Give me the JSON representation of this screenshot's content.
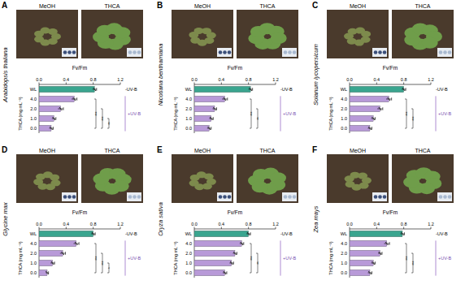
{
  "chart_data": [
    {
      "type": "bar",
      "orientation": "horizontal",
      "panel": "A",
      "title": "Arabidopsis thaliana",
      "photo_labels": [
        "MeOH",
        "THCA"
      ],
      "x_label": "Fv/Fm",
      "y_label": "THCA (mg mL⁻¹)",
      "categories": [
        "WL",
        "4.0",
        "2.0",
        "1.0",
        "0.0"
      ],
      "values": [
        0.82,
        0.52,
        0.32,
        0.22,
        0.18
      ],
      "errors": [
        0.03,
        0.04,
        0.04,
        0.03,
        0.03
      ],
      "colors": [
        "#3aa58f",
        "#b89ad8",
        "#b89ad8",
        "#b89ad8",
        "#b89ad8"
      ],
      "xlim": [
        0,
        1.2
      ],
      "xticks": [
        {
          "value": 0,
          "label": "0.0"
        },
        0.4,
        0.8,
        1.2
      ],
      "annotations": [
        "-UV-B",
        "+UV-B"
      ],
      "significance": [
        {
          "from": 1,
          "to": 4,
          "label": "***"
        },
        {
          "from": 2,
          "to": 4,
          "label": "***"
        },
        {
          "from": 3,
          "to": 4,
          "label": "**"
        }
      ]
    },
    {
      "type": "bar",
      "orientation": "horizontal",
      "panel": "B",
      "title": "Nicotiana benthamiana",
      "photo_labels": [
        "MeOH",
        "THCA"
      ],
      "x_label": "Fv/Fm",
      "y_label": "THCA (mg mL⁻¹)",
      "categories": [
        "WL",
        "4.0",
        "2.0",
        "1.0",
        "0.0"
      ],
      "values": [
        0.83,
        0.45,
        0.3,
        0.25,
        0.22
      ],
      "errors": [
        0.03,
        0.04,
        0.03,
        0.03,
        0.03
      ],
      "colors": [
        "#3aa58f",
        "#b89ad8",
        "#b89ad8",
        "#b89ad8",
        "#b89ad8"
      ],
      "xlim": [
        0,
        1.2
      ],
      "xticks": [
        {
          "value": 0,
          "label": "0.0"
        },
        0.4,
        0.8,
        1.2
      ],
      "annotations": [
        "-UV-B",
        "+UV-B"
      ],
      "significance": [
        {
          "from": 1,
          "to": 4,
          "label": "***"
        },
        {
          "from": 2,
          "to": 4,
          "label": "**"
        }
      ]
    },
    {
      "type": "bar",
      "orientation": "horizontal",
      "panel": "C",
      "title": "Solanum lycopersicum",
      "photo_labels": [
        "MeOH",
        "THCA"
      ],
      "x_label": "Fv/Fm",
      "y_label": "THCA (mg mL⁻¹)",
      "categories": [
        "WL",
        "4.0",
        "2.0",
        "1.0",
        "0.0"
      ],
      "values": [
        0.8,
        0.58,
        0.45,
        0.35,
        0.3
      ],
      "errors": [
        0.03,
        0.04,
        0.04,
        0.03,
        0.03
      ],
      "colors": [
        "#3aa58f",
        "#b89ad8",
        "#b89ad8",
        "#b89ad8",
        "#b89ad8"
      ],
      "xlim": [
        0,
        1.2
      ],
      "xticks": [
        {
          "value": 0,
          "label": "0.0"
        },
        0.4,
        0.8,
        1.2
      ],
      "annotations": [
        "-UV-B",
        "+UV-B"
      ],
      "significance": [
        {
          "from": 1,
          "to": 4,
          "label": "***"
        },
        {
          "from": 2,
          "to": 4,
          "label": "***"
        }
      ]
    },
    {
      "type": "bar",
      "orientation": "horizontal",
      "panel": "D",
      "title": "Glycine max",
      "photo_labels": [
        "MeOH",
        "THCA"
      ],
      "x_label": "Fv/Fm",
      "y_label": "THCA (mg mL⁻¹)",
      "categories": [
        "WL",
        "4.0",
        "2.0",
        "1.0",
        "0.0"
      ],
      "values": [
        0.8,
        0.55,
        0.35,
        0.2,
        0.12
      ],
      "errors": [
        0.03,
        0.04,
        0.04,
        0.03,
        0.02
      ],
      "colors": [
        "#3aa58f",
        "#b89ad8",
        "#b89ad8",
        "#b89ad8",
        "#b89ad8"
      ],
      "xlim": [
        0,
        1.2
      ],
      "xticks": [
        {
          "value": 0,
          "label": "0.0"
        },
        0.4,
        0.8,
        1.2
      ],
      "annotations": [
        "-UV-B",
        "+UV-B"
      ],
      "significance": [
        {
          "from": 1,
          "to": 4,
          "label": "***"
        },
        {
          "from": 2,
          "to": 4,
          "label": "***"
        },
        {
          "from": 3,
          "to": 4,
          "label": "*"
        }
      ]
    },
    {
      "type": "bar",
      "orientation": "horizontal",
      "panel": "E",
      "title": "Oryza sativa",
      "photo_labels": [
        "MeOH",
        "THCA"
      ],
      "x_label": "Fv/Fm",
      "y_label": "THCA (mg mL⁻¹)",
      "categories": [
        "WL",
        "4.0",
        "2.0",
        "1.0",
        "0.0"
      ],
      "values": [
        0.8,
        0.7,
        0.6,
        0.55,
        0.45
      ],
      "errors": [
        0.03,
        0.03,
        0.03,
        0.03,
        0.03
      ],
      "colors": [
        "#3aa58f",
        "#b89ad8",
        "#b89ad8",
        "#b89ad8",
        "#b89ad8"
      ],
      "xlim": [
        0,
        1.2
      ],
      "xticks": [
        {
          "value": 0,
          "label": "0.0"
        },
        0.4,
        0.8,
        1.2
      ],
      "annotations": [
        "-UV-B",
        "+UV-B"
      ],
      "significance": [
        {
          "from": 1,
          "to": 4,
          "label": "***"
        },
        {
          "from": 2,
          "to": 4,
          "label": "**"
        }
      ]
    },
    {
      "type": "bar",
      "orientation": "horizontal",
      "panel": "F",
      "title": "Zea mays",
      "photo_labels": [
        "MeOH",
        "THCA"
      ],
      "x_label": "Fv/Fm",
      "y_label": "THCA (mg mL⁻¹)",
      "categories": [
        "WL",
        "4.0",
        "2.0",
        "1.0",
        "0.0"
      ],
      "values": [
        0.78,
        0.55,
        0.45,
        0.35,
        0.3
      ],
      "errors": [
        0.03,
        0.04,
        0.03,
        0.03,
        0.03
      ],
      "colors": [
        "#3aa58f",
        "#b89ad8",
        "#b89ad8",
        "#b89ad8",
        "#b89ad8"
      ],
      "xlim": [
        0,
        1.2
      ],
      "xticks": [
        {
          "value": 0,
          "label": "0.0"
        },
        0.4,
        0.8,
        1.2
      ],
      "annotations": [
        "-UV-B",
        "+UV-B"
      ],
      "significance": [
        {
          "from": 1,
          "to": 4,
          "label": "***"
        },
        {
          "from": 2,
          "to": 4,
          "label": "***"
        }
      ]
    }
  ]
}
